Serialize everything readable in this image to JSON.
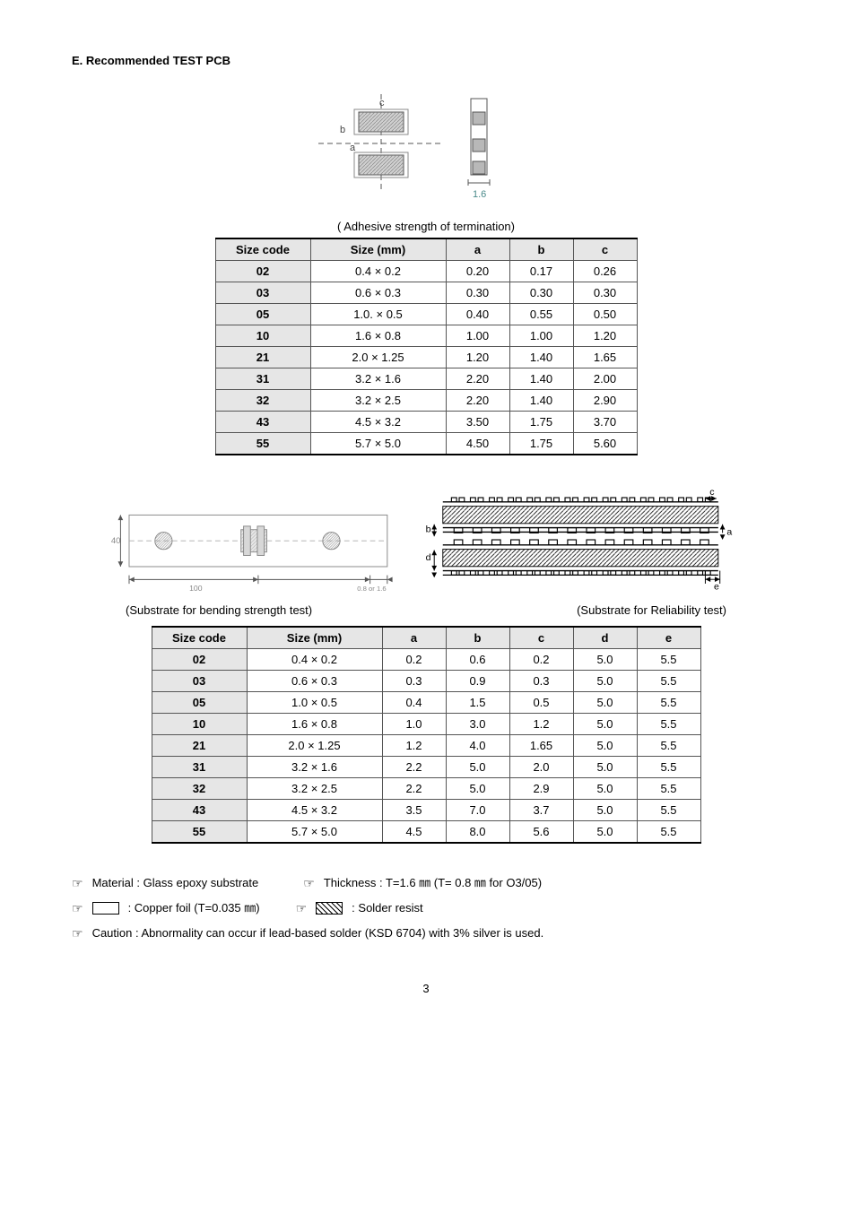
{
  "section_title": "E. Recommended TEST PCB",
  "caption1": "( Adhesive strength of termination)",
  "table1": {
    "headers": [
      "Size code",
      "Size (mm)",
      "a",
      "b",
      "c"
    ],
    "rows": [
      [
        "02",
        "0.4 × 0.2",
        "0.20",
        "0.17",
        "0.26"
      ],
      [
        "03",
        "0.6 × 0.3",
        "0.30",
        "0.30",
        "0.30"
      ],
      [
        "05",
        "1.0. × 0.5",
        "0.40",
        "0.55",
        "0.50"
      ],
      [
        "10",
        "1.6 × 0.8",
        "1.00",
        "1.00",
        "1.20"
      ],
      [
        "21",
        "2.0 × 1.25",
        "1.20",
        "1.40",
        "1.65"
      ],
      [
        "31",
        "3.2 × 1.6",
        "2.20",
        "1.40",
        "2.00"
      ],
      [
        "32",
        "3.2 × 2.5",
        "2.20",
        "1.40",
        "2.90"
      ],
      [
        "43",
        "4.5 × 3.2",
        "3.50",
        "1.75",
        "3.70"
      ],
      [
        "55",
        "5.7 × 5.0",
        "4.50",
        "1.75",
        "5.60"
      ]
    ]
  },
  "sub_caption_left": "(Substrate for bending strength test)",
  "sub_caption_right": "(Substrate for Reliability test)",
  "table2": {
    "headers": [
      "Size code",
      "Size (mm)",
      "a",
      "b",
      "c",
      "d",
      "e"
    ],
    "rows": [
      [
        "02",
        "0.4 × 0.2",
        "0.2",
        "0.6",
        "0.2",
        "5.0",
        "5.5"
      ],
      [
        "03",
        "0.6 × 0.3",
        "0.3",
        "0.9",
        "0.3",
        "5.0",
        "5.5"
      ],
      [
        "05",
        "1.0 × 0.5",
        "0.4",
        "1.5",
        "0.5",
        "5.0",
        "5.5"
      ],
      [
        "10",
        "1.6 × 0.8",
        "1.0",
        "3.0",
        "1.2",
        "5.0",
        "5.5"
      ],
      [
        "21",
        "2.0 × 1.25",
        "1.2",
        "4.0",
        "1.65",
        "5.0",
        "5.5"
      ],
      [
        "31",
        "3.2 × 1.6",
        "2.2",
        "5.0",
        "2.0",
        "5.0",
        "5.5"
      ],
      [
        "32",
        "3.2 × 2.5",
        "2.2",
        "5.0",
        "2.9",
        "5.0",
        "5.5"
      ],
      [
        "43",
        "4.5 × 3.2",
        "3.5",
        "7.0",
        "3.7",
        "5.0",
        "5.5"
      ],
      [
        "55",
        "5.7 × 5.0",
        "4.5",
        "8.0",
        "5.6",
        "5.0",
        "5.5"
      ]
    ]
  },
  "notes": {
    "material": "Material : Glass epoxy substrate",
    "thickness": "Thickness : T=1.6 ㎜ (T= 0.8 ㎜ for O3/05)",
    "copper": ": Copper foil (T=0.035 ㎜)",
    "solder": ": Solder resist",
    "caution": "Caution : Abnormality can occur if lead-based solder (KSD 6704) with 3% silver is used."
  },
  "page": "3",
  "diagram1": {
    "label_a": "a",
    "label_b": "b",
    "label_c": "c",
    "label_16": "1.6"
  },
  "diagram2": {
    "label_40": "40",
    "label_100": "100",
    "label_thick": "0.8 or 1.6"
  },
  "diagram3": {
    "label_a": "a",
    "label_b": "b",
    "label_c": "c",
    "label_d": "d",
    "label_e": "e"
  }
}
